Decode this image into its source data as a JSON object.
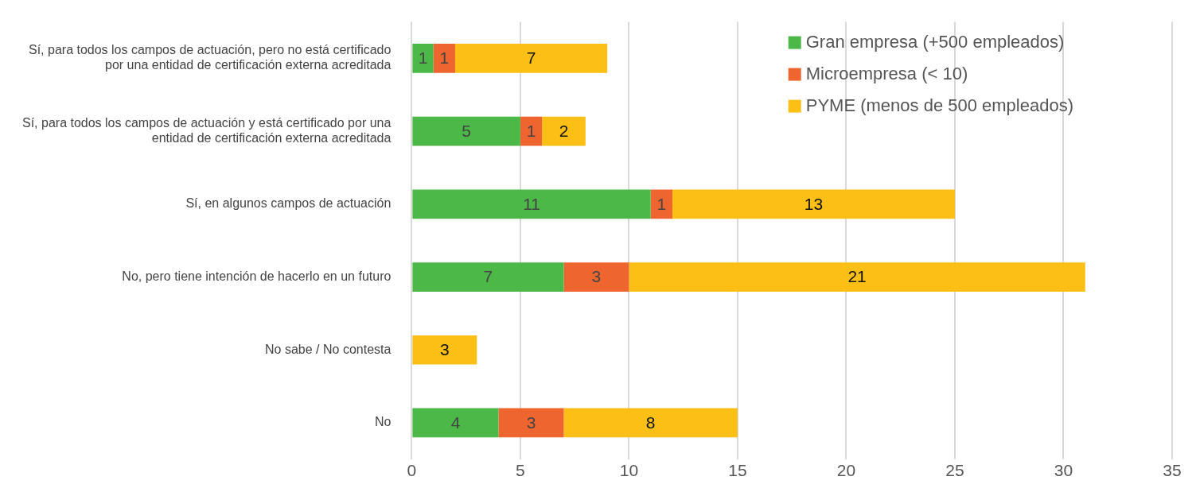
{
  "chart_data": {
    "type": "bar",
    "orientation": "horizontal",
    "stacked": true,
    "categories": [
      "Sí, para todos los campos de actuación, pero no está certificado por una entidad de certificación externa acreditada",
      "Sí, para todos los campos de actuación y está certificado por una entidad de certificación externa acreditada",
      "Sí, en algunos campos de actuación",
      "No, pero tiene intención de hacerlo en un futuro",
      "No sabe / No contesta",
      "No"
    ],
    "series": [
      {
        "name": "Gran empresa (+500 empleados)",
        "color": "#4cb848",
        "values": [
          1,
          5,
          11,
          7,
          null,
          4
        ]
      },
      {
        "name": "Microempresa (< 10)",
        "color": "#ef6530",
        "values": [
          1,
          1,
          1,
          3,
          null,
          3
        ]
      },
      {
        "name": "PYME (menos de 500 empleados)",
        "color": "#fbbf16",
        "values": [
          7,
          2,
          13,
          21,
          3,
          8
        ]
      }
    ],
    "xlim": [
      0,
      35
    ],
    "xticks": [
      0,
      5,
      10,
      15,
      20,
      25,
      30,
      35
    ],
    "grid": "x",
    "legend": "top right",
    "data_labels": true
  }
}
